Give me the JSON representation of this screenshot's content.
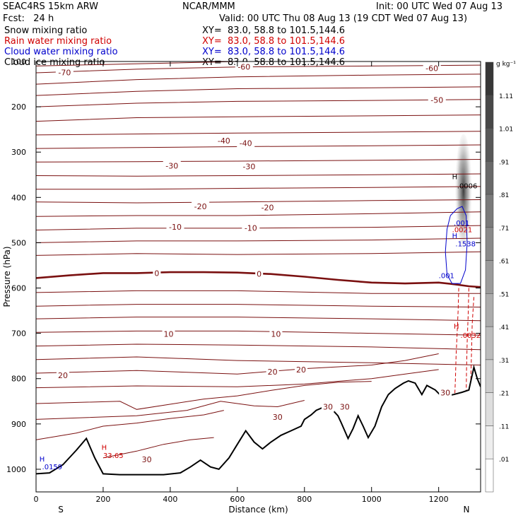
{
  "header": {
    "model": "SEAC4RS 15km ARW",
    "center": "NCAR/MMM",
    "init": "Init: 00 UTC Wed 07 Aug 13",
    "fcst": "Fcst:   24 h",
    "valid": "Valid: 00 UTC Thu 08 Aug 13 (19 CDT Wed 07 Aug 13)"
  },
  "fields": [
    {
      "name": "Snow mixing ratio",
      "xy": "XY=  83.0, 58.8 to 101.5,144.6",
      "color": "#000000"
    },
    {
      "name": "Rain water mixing ratio",
      "xy": "XY=  83.0, 58.8 to 101.5,144.6",
      "color": "#d00000"
    },
    {
      "name": "Cloud water mixing ratio",
      "xy": "XY=  83.0, 58.8 to 101.5,144.6",
      "color": "#0000cc"
    },
    {
      "name": "Cloud ice mixing ratio",
      "xy": "XY=  83.0, 58.8 to 101.5,144.6",
      "color": "#000000"
    }
  ],
  "colorbar": {
    "unit": "g kg⁻¹",
    "labels": [
      "1.11",
      "1.01",
      ".91",
      ".81",
      ".71",
      ".61",
      ".51",
      ".41",
      ".31",
      ".21",
      ".11",
      ".01"
    ]
  },
  "chart_data": {
    "type": "contour",
    "xlabel": "Distance (km)",
    "ylabel": "Pressure (hPa)",
    "x_ticks": [
      "0",
      "200",
      "400",
      "600",
      "800",
      "1000",
      "1200"
    ],
    "x_end_labels": [
      "S",
      "N"
    ],
    "y_ticks": [
      "100",
      "200",
      "300",
      "400",
      "500",
      "600",
      "700",
      "800",
      "900",
      "1000"
    ],
    "xlim": [
      0,
      1325
    ],
    "ylim": [
      1050,
      100
    ],
    "temperature_contour_labels": [
      {
        "text": "-70",
        "x": 85,
        "p": 124
      },
      {
        "text": "-60",
        "x": 620,
        "p": 112
      },
      {
        "text": "-60",
        "x": 1180,
        "p": 115
      },
      {
        "text": "-50",
        "x": 1195,
        "p": 185
      },
      {
        "text": "-40",
        "x": 560,
        "p": 275
      },
      {
        "text": "-40",
        "x": 625,
        "p": 280
      },
      {
        "text": "-30",
        "x": 405,
        "p": 330
      },
      {
        "text": "-30",
        "x": 635,
        "p": 332
      },
      {
        "text": "-20",
        "x": 490,
        "p": 420
      },
      {
        "text": "-20",
        "x": 690,
        "p": 422
      },
      {
        "text": "-10",
        "x": 415,
        "p": 465
      },
      {
        "text": "-10",
        "x": 640,
        "p": 467
      },
      {
        "text": "0",
        "x": 360,
        "p": 567
      },
      {
        "text": "0",
        "x": 665,
        "p": 569
      },
      {
        "text": "10",
        "x": 395,
        "p": 701
      },
      {
        "text": "10",
        "x": 715,
        "p": 701
      },
      {
        "text": "20",
        "x": 80,
        "p": 793
      },
      {
        "text": "20",
        "x": 705,
        "p": 785
      },
      {
        "text": "20",
        "x": 790,
        "p": 780
      },
      {
        "text": "30",
        "x": 720,
        "p": 885
      },
      {
        "text": "30",
        "x": 870,
        "p": 862
      },
      {
        "text": "30",
        "x": 920,
        "p": 862
      },
      {
        "text": "30",
        "x": 330,
        "p": 978
      },
      {
        "text": "30",
        "x": 1220,
        "p": 831
      }
    ],
    "field_labels": [
      {
        "text": "H",
        "x": 1240,
        "p": 360,
        "color": "#000000"
      },
      {
        "text": ".0006",
        "x": 1255,
        "p": 380,
        "color": "#000000"
      },
      {
        "text": ".001",
        "x": 1245,
        "p": 462,
        "color": "#0000cc"
      },
      {
        "text": ".0021",
        "x": 1240,
        "p": 477,
        "color": "#d00000"
      },
      {
        "text": "H",
        "x": 1240,
        "p": 490,
        "color": "#0000cc"
      },
      {
        "text": ".1538",
        "x": 1250,
        "p": 508,
        "color": "#0000cc"
      },
      {
        "text": ".001",
        "x": 1200,
        "p": 578,
        "color": "#0000cc"
      },
      {
        "text": "H",
        "x": 1245,
        "p": 690,
        "color": "#d00000"
      },
      {
        "text": ".0032",
        "x": 1265,
        "p": 710,
        "color": "#d00000"
      },
      {
        "text": "H",
        "x": 195,
        "p": 957,
        "color": "#d00000"
      },
      {
        "text": "33.65",
        "x": 200,
        "p": 975,
        "color": "#d00000"
      },
      {
        "text": "H",
        "x": 10,
        "p": 983,
        "color": "#0000cc"
      },
      {
        "text": ".0159",
        "x": 18,
        "p": 1000,
        "color": "#0000cc"
      }
    ],
    "terrain_p": [
      [
        0,
        1010
      ],
      [
        40,
        1008
      ],
      [
        80,
        990
      ],
      [
        120,
        958
      ],
      [
        150,
        932
      ],
      [
        175,
        975
      ],
      [
        200,
        1010
      ],
      [
        250,
        1012
      ],
      [
        300,
        1012
      ],
      [
        380,
        1012
      ],
      [
        430,
        1008
      ],
      [
        460,
        995
      ],
      [
        490,
        980
      ],
      [
        520,
        995
      ],
      [
        545,
        1000
      ],
      [
        575,
        975
      ],
      [
        600,
        945
      ],
      [
        625,
        915
      ],
      [
        650,
        940
      ],
      [
        675,
        955
      ],
      [
        700,
        940
      ],
      [
        730,
        925
      ],
      [
        760,
        915
      ],
      [
        790,
        905
      ],
      [
        800,
        890
      ],
      [
        820,
        880
      ],
      [
        835,
        870
      ],
      [
        860,
        862
      ],
      [
        885,
        870
      ],
      [
        900,
        882
      ],
      [
        910,
        898
      ],
      [
        930,
        932
      ],
      [
        945,
        910
      ],
      [
        960,
        882
      ],
      [
        975,
        905
      ],
      [
        990,
        930
      ],
      [
        1010,
        905
      ],
      [
        1030,
        862
      ],
      [
        1050,
        835
      ],
      [
        1070,
        822
      ],
      [
        1095,
        810
      ],
      [
        1110,
        805
      ],
      [
        1130,
        810
      ],
      [
        1150,
        835
      ],
      [
        1165,
        815
      ],
      [
        1190,
        825
      ],
      [
        1210,
        840
      ],
      [
        1245,
        835
      ],
      [
        1270,
        830
      ],
      [
        1290,
        825
      ],
      [
        1305,
        775
      ],
      [
        1315,
        800
      ],
      [
        1325,
        818
      ]
    ],
    "zero_isotherm_p": [
      [
        0,
        578
      ],
      [
        100,
        572
      ],
      [
        200,
        567
      ],
      [
        300,
        567
      ],
      [
        400,
        565
      ],
      [
        500,
        565
      ],
      [
        600,
        566
      ],
      [
        700,
        569
      ],
      [
        800,
        575
      ],
      [
        900,
        582
      ],
      [
        1000,
        588
      ],
      [
        1100,
        590
      ],
      [
        1200,
        588
      ],
      [
        1250,
        592
      ],
      [
        1290,
        596
      ],
      [
        1325,
        598
      ]
    ],
    "isotherm_p": [
      [
        [
          0,
          110
        ],
        [
          300,
          105
        ],
        [
          600,
          100
        ],
        [
          1000,
          97
        ],
        [
          1325,
          95
        ]
      ],
      [
        [
          0,
          125
        ],
        [
          300,
          117
        ],
        [
          600,
          112
        ],
        [
          1000,
          110
        ],
        [
          1325,
          108
        ]
      ],
      [
        [
          0,
          150
        ],
        [
          300,
          140
        ],
        [
          600,
          134
        ],
        [
          1000,
          130
        ],
        [
          1325,
          128
        ]
      ],
      [
        [
          0,
          175
        ],
        [
          300,
          166
        ],
        [
          600,
          160
        ],
        [
          1000,
          158
        ],
        [
          1325,
          156
        ]
      ],
      [
        [
          0,
          200
        ],
        [
          300,
          192
        ],
        [
          600,
          188
        ],
        [
          1000,
          186
        ],
        [
          1325,
          184
        ]
      ],
      [
        [
          0,
          232
        ],
        [
          300,
          224
        ],
        [
          600,
          222
        ],
        [
          1000,
          220
        ],
        [
          1325,
          218
        ]
      ],
      [
        [
          0,
          262
        ],
        [
          300,
          260
        ],
        [
          600,
          258
        ],
        [
          1000,
          256
        ],
        [
          1325,
          254
        ]
      ],
      [
        [
          0,
          292
        ],
        [
          300,
          290
        ],
        [
          600,
          288
        ],
        [
          1000,
          286
        ],
        [
          1325,
          284
        ]
      ],
      [
        [
          0,
          322
        ],
        [
          300,
          321
        ],
        [
          600,
          320
        ],
        [
          1000,
          318
        ],
        [
          1325,
          316
        ]
      ],
      [
        [
          0,
          352
        ],
        [
          300,
          353
        ],
        [
          600,
          352
        ],
        [
          1000,
          350
        ],
        [
          1325,
          348
        ]
      ],
      [
        [
          0,
          382
        ],
        [
          300,
          382
        ],
        [
          600,
          380
        ],
        [
          1000,
          378
        ],
        [
          1325,
          376
        ]
      ],
      [
        [
          0,
          410
        ],
        [
          300,
          412
        ],
        [
          600,
          410
        ],
        [
          1000,
          407
        ],
        [
          1325,
          405
        ]
      ],
      [
        [
          0,
          442
        ],
        [
          300,
          440
        ],
        [
          600,
          440
        ],
        [
          1000,
          436
        ],
        [
          1325,
          432
        ]
      ],
      [
        [
          0,
          472
        ],
        [
          300,
          468
        ],
        [
          600,
          468
        ],
        [
          1000,
          466
        ],
        [
          1325,
          462
        ]
      ],
      [
        [
          0,
          500
        ],
        [
          300,
          496
        ],
        [
          600,
          496
        ],
        [
          1000,
          494
        ],
        [
          1325,
          490
        ]
      ],
      [
        [
          0,
          528
        ],
        [
          300,
          524
        ],
        [
          600,
          526
        ],
        [
          1000,
          524
        ],
        [
          1325,
          520
        ]
      ],
      [
        [
          0,
          610
        ],
        [
          300,
          606
        ],
        [
          600,
          606
        ],
        [
          1000,
          612
        ],
        [
          1325,
          612
        ]
      ],
      [
        [
          0,
          640
        ],
        [
          300,
          636
        ],
        [
          600,
          636
        ],
        [
          1000,
          640
        ],
        [
          1325,
          642
        ]
      ],
      [
        [
          0,
          668
        ],
        [
          300,
          664
        ],
        [
          600,
          664
        ],
        [
          1000,
          668
        ],
        [
          1325,
          672
        ]
      ],
      [
        [
          0,
          698
        ],
        [
          300,
          695
        ],
        [
          600,
          695
        ],
        [
          1000,
          700
        ],
        [
          1325,
          704
        ]
      ],
      [
        [
          0,
          728
        ],
        [
          300,
          724
        ],
        [
          600,
          726
        ],
        [
          1000,
          730
        ],
        [
          1325,
          736
        ]
      ],
      [
        [
          0,
          758
        ],
        [
          300,
          752
        ],
        [
          600,
          760
        ],
        [
          1000,
          765
        ],
        [
          1325,
          770
        ]
      ],
      [
        [
          0,
          788
        ],
        [
          300,
          782
        ],
        [
          600,
          790
        ],
        [
          800,
          778
        ],
        [
          1000,
          770
        ],
        [
          1100,
          760
        ],
        [
          1200,
          745
        ]
      ],
      [
        [
          0,
          820
        ],
        [
          300,
          816
        ],
        [
          600,
          818
        ],
        [
          800,
          812
        ],
        [
          1000,
          800
        ],
        [
          1100,
          790
        ],
        [
          1200,
          780
        ]
      ],
      [
        [
          0,
          855
        ],
        [
          250,
          850
        ],
        [
          300,
          868
        ],
        [
          500,
          845
        ],
        [
          600,
          838
        ],
        [
          700,
          826
        ],
        [
          800,
          815
        ],
        [
          900,
          808
        ],
        [
          1000,
          806
        ]
      ],
      [
        [
          0,
          890
        ],
        [
          300,
          882
        ],
        [
          450,
          870
        ],
        [
          550,
          850
        ],
        [
          650,
          860
        ],
        [
          720,
          862
        ],
        [
          800,
          848
        ]
      ],
      [
        [
          0,
          935
        ],
        [
          120,
          920
        ],
        [
          200,
          905
        ],
        [
          300,
          898
        ],
        [
          400,
          888
        ],
        [
          500,
          880
        ],
        [
          560,
          870
        ]
      ],
      [
        [
          200,
          975
        ],
        [
          300,
          960
        ],
        [
          380,
          945
        ],
        [
          460,
          935
        ],
        [
          530,
          930
        ]
      ]
    ],
    "snow_shading": {
      "x": [
        1248,
        1300
      ],
      "p": [
        280,
        560
      ],
      "peak_p": 400,
      "peak_value": 0.6
    },
    "rain_contours_p": [
      [
        [
          1260,
          600
        ],
        [
          1258,
          650
        ],
        [
          1255,
          700
        ],
        [
          1252,
          750
        ],
        [
          1250,
          800
        ],
        [
          1248,
          840
        ]
      ],
      [
        [
          1290,
          600
        ],
        [
          1288,
          660
        ],
        [
          1285,
          720
        ],
        [
          1283,
          780
        ],
        [
          1282,
          840
        ]
      ],
      [
        [
          1305,
          620
        ],
        [
          1300,
          680
        ],
        [
          1298,
          740
        ],
        [
          1296,
          800
        ],
        [
          1292,
          840
        ]
      ]
    ],
    "cloud_water_contours_p": [
      [
        [
          1235,
          440
        ],
        [
          1225,
          470
        ],
        [
          1220,
          520
        ],
        [
          1225,
          570
        ],
        [
          1240,
          590
        ],
        [
          1265,
          590
        ],
        [
          1280,
          560
        ],
        [
          1285,
          500
        ],
        [
          1282,
          440
        ],
        [
          1270,
          420
        ],
        [
          1255,
          425
        ],
        [
          1235,
          440
        ]
      ]
    ]
  }
}
